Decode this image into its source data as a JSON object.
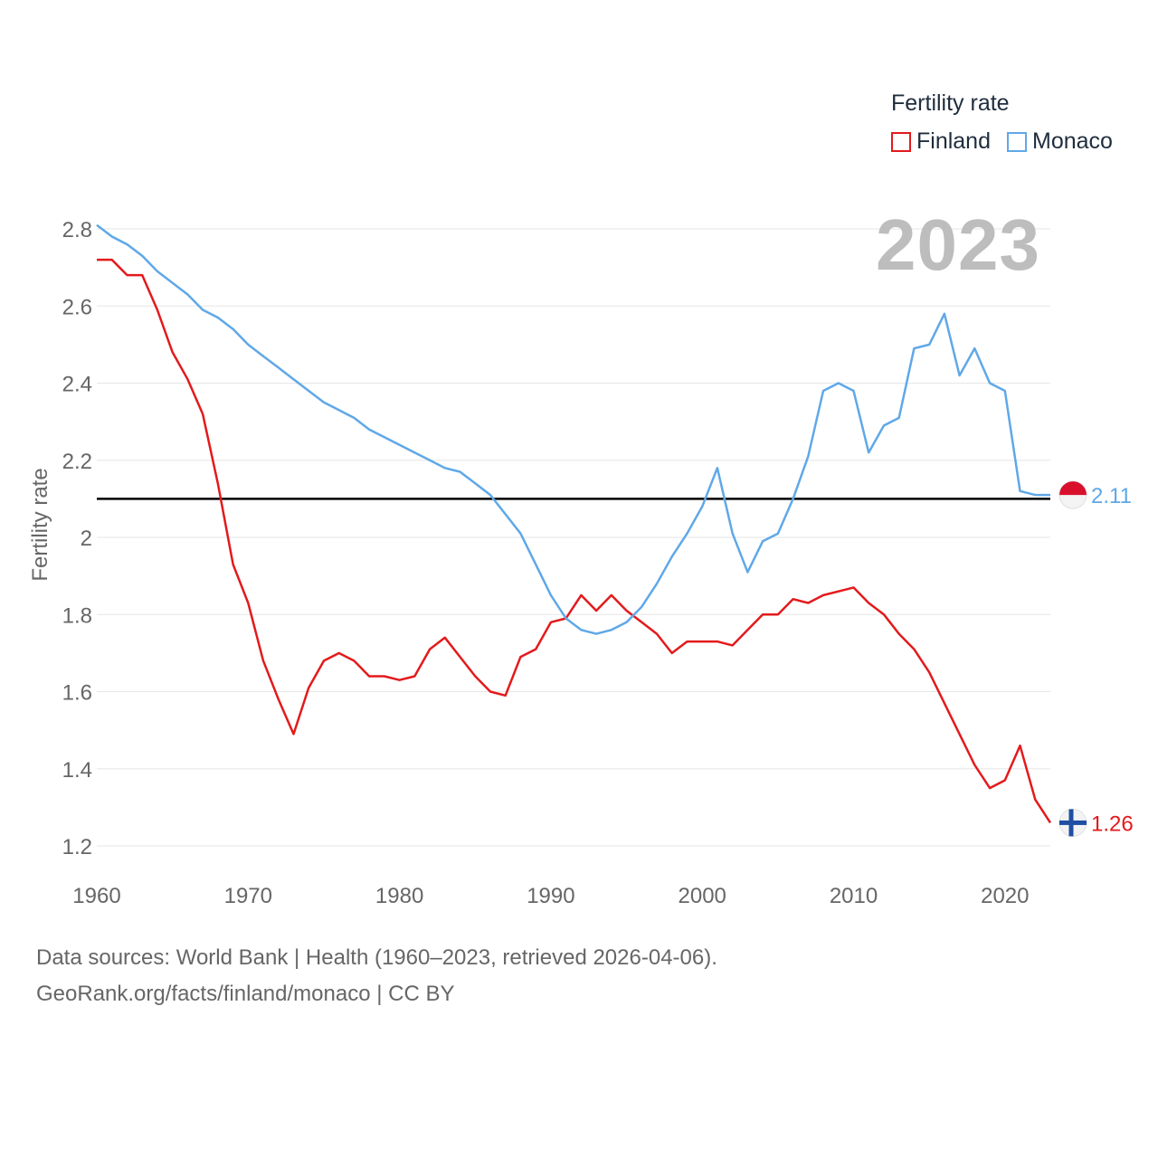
{
  "legend": {
    "title": "Fertility rate"
  },
  "year_label": "2023",
  "footer": {
    "line1": "Data sources: World Bank | Health (1960–2023, retrieved 2026-04-06).",
    "line2": "GeoRank.org/facts/finland/monaco | CC BY"
  },
  "chart_data": {
    "type": "line",
    "title": "",
    "xlabel": "",
    "ylabel": "Fertility rate",
    "xlim": [
      1960,
      2023
    ],
    "ylim": [
      1.2,
      2.8
    ],
    "x_ticks": [
      1960,
      1970,
      1980,
      1990,
      2000,
      2010,
      2020
    ],
    "y_ticks": [
      1.2,
      1.4,
      1.6,
      1.8,
      2,
      2.2,
      2.4,
      2.6,
      2.8
    ],
    "y_tick_labels": [
      "1.2",
      "1.4",
      "1.6",
      "1.8",
      "2",
      "2.2",
      "2.4",
      "2.6",
      "2.8"
    ],
    "reference_line": {
      "y": 2.1,
      "color": "#000000"
    },
    "x": [
      1960,
      1961,
      1962,
      1963,
      1964,
      1965,
      1966,
      1967,
      1968,
      1969,
      1970,
      1971,
      1972,
      1973,
      1974,
      1975,
      1976,
      1977,
      1978,
      1979,
      1980,
      1981,
      1982,
      1983,
      1984,
      1985,
      1986,
      1987,
      1988,
      1989,
      1990,
      1991,
      1992,
      1993,
      1994,
      1995,
      1996,
      1997,
      1998,
      1999,
      2000,
      2001,
      2002,
      2003,
      2004,
      2005,
      2006,
      2007,
      2008,
      2009,
      2010,
      2011,
      2012,
      2013,
      2014,
      2015,
      2016,
      2017,
      2018,
      2019,
      2020,
      2021,
      2022,
      2023
    ],
    "series": [
      {
        "name": "Finland",
        "color": "#e31a1c",
        "end_label": "1.26",
        "values": [
          2.72,
          2.72,
          2.68,
          2.68,
          2.59,
          2.48,
          2.41,
          2.32,
          2.14,
          1.93,
          1.83,
          1.68,
          1.58,
          1.49,
          1.61,
          1.68,
          1.7,
          1.68,
          1.64,
          1.64,
          1.63,
          1.64,
          1.71,
          1.74,
          1.69,
          1.64,
          1.6,
          1.59,
          1.69,
          1.71,
          1.78,
          1.79,
          1.85,
          1.81,
          1.85,
          1.81,
          1.78,
          1.75,
          1.7,
          1.73,
          1.73,
          1.73,
          1.72,
          1.76,
          1.8,
          1.8,
          1.84,
          1.83,
          1.85,
          1.86,
          1.87,
          1.83,
          1.8,
          1.75,
          1.71,
          1.65,
          1.57,
          1.49,
          1.41,
          1.35,
          1.37,
          1.46,
          1.32,
          1.26
        ]
      },
      {
        "name": "Monaco",
        "color": "#5fa8e8",
        "end_label": "2.11",
        "values": [
          2.81,
          2.78,
          2.76,
          2.73,
          2.69,
          2.66,
          2.63,
          2.59,
          2.57,
          2.54,
          2.5,
          2.47,
          2.44,
          2.41,
          2.38,
          2.35,
          2.33,
          2.31,
          2.28,
          2.26,
          2.24,
          2.22,
          2.2,
          2.18,
          2.17,
          2.14,
          2.11,
          2.06,
          2.01,
          1.93,
          1.85,
          1.79,
          1.76,
          1.75,
          1.76,
          1.78,
          1.82,
          1.88,
          1.95,
          2.01,
          2.08,
          2.18,
          2.01,
          1.91,
          1.99,
          2.01,
          2.1,
          2.21,
          2.38,
          2.4,
          2.38,
          2.22,
          2.29,
          2.31,
          2.49,
          2.5,
          2.58,
          2.42,
          2.49,
          2.4,
          2.38,
          2.12,
          2.11,
          2.11
        ]
      }
    ]
  }
}
